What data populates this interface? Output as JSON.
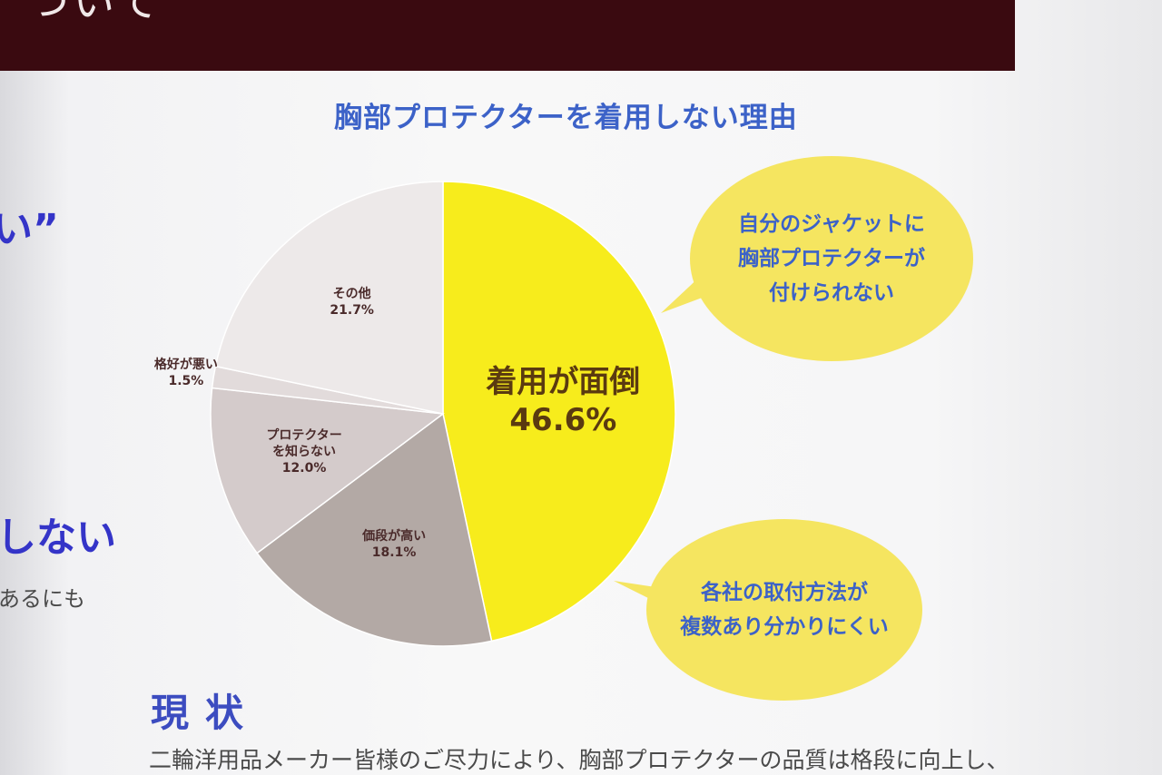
{
  "header": {
    "title_fragment": "ついて"
  },
  "side": {
    "quote_fragment": "い”",
    "heading_fragment": "しない",
    "text_fragment": "あるにも"
  },
  "chart_data": {
    "type": "pie",
    "title": "胸部プロテクターを着用しない理由",
    "slices": [
      {
        "label": "着用が面倒",
        "value": 46.6,
        "value_label": "46.6%",
        "color": "#f7ec1c"
      },
      {
        "label": "価段が高い",
        "value": 18.1,
        "value_label": "18.1%",
        "color": "#b3a9a5"
      },
      {
        "label": "プロテクターを知らない",
        "label_lines": [
          "プロテクター",
          "を知らない"
        ],
        "value": 12.0,
        "value_label": "12.0%",
        "color": "#d4cbcb"
      },
      {
        "label": "格好が悪い",
        "value": 1.5,
        "value_label": "1.5%",
        "color": "#e2dbdb"
      },
      {
        "label": "その他",
        "value": 21.7,
        "value_label": "21.7%",
        "color": "#ede9e9"
      }
    ],
    "callouts": [
      {
        "lines": [
          "自分のジャケットに",
          "胸部プロテクターが",
          "付けられない"
        ]
      },
      {
        "lines": [
          "各社の取付方法が",
          "複数あり分かりにくい"
        ]
      }
    ]
  },
  "footer": {
    "heading": "現状",
    "text": "二輪洋用品メーカー皆様のご尽力により、胸部プロテクターの品質は格段に向上し、"
  }
}
